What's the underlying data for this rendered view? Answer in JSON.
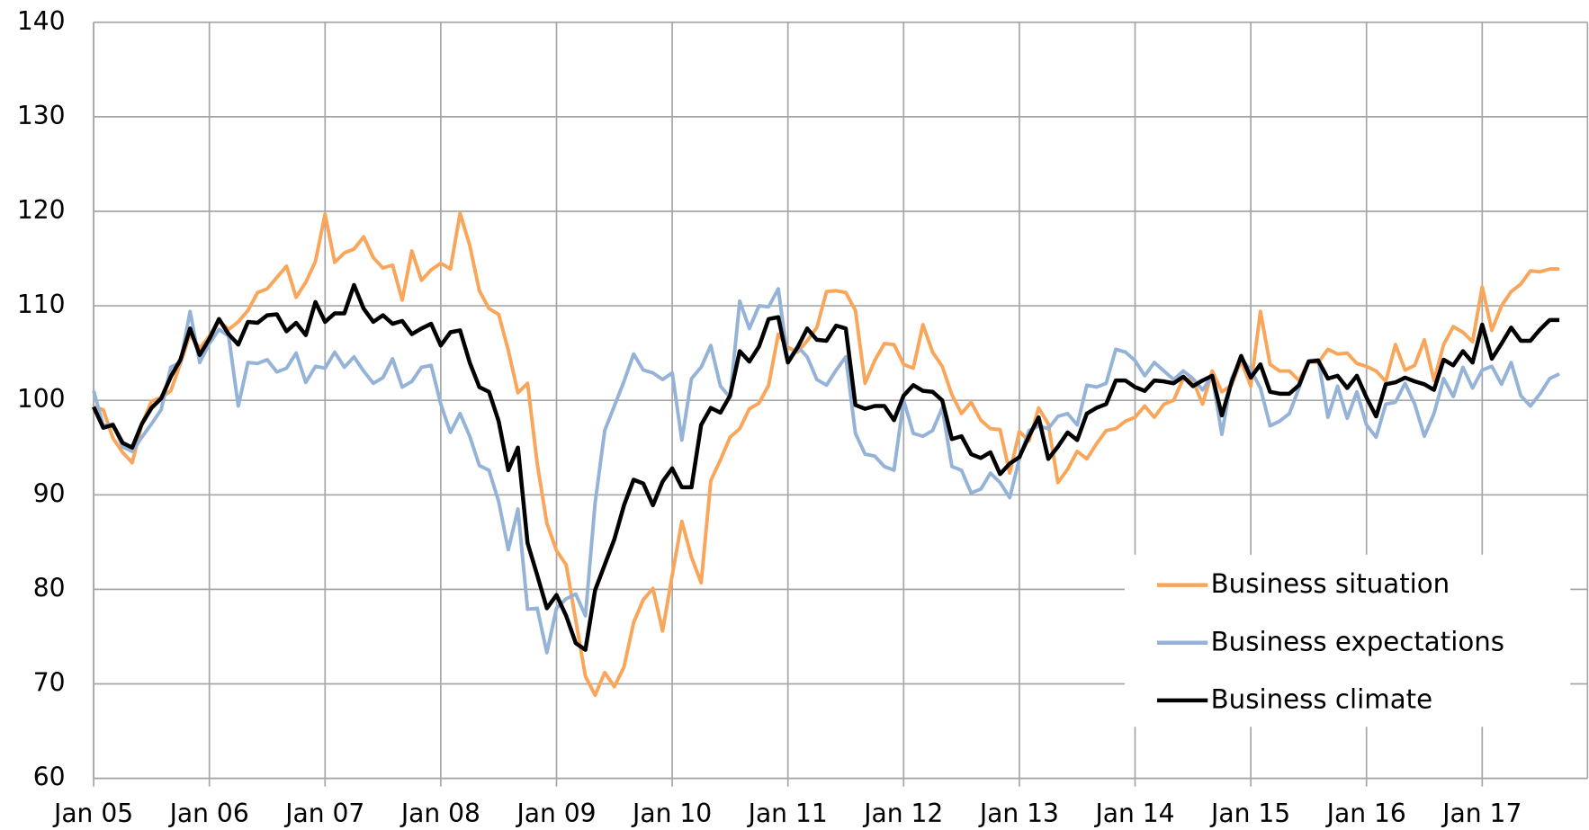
{
  "chart_data": {
    "type": "line",
    "categories": [
      "Jan 05",
      null,
      null,
      null,
      null,
      null,
      null,
      null,
      null,
      null,
      null,
      null,
      "Jan 06",
      null,
      null,
      null,
      null,
      null,
      null,
      null,
      null,
      null,
      null,
      null,
      "Jan 07",
      null,
      null,
      null,
      null,
      null,
      null,
      null,
      null,
      null,
      null,
      null,
      "Jan 08",
      null,
      null,
      null,
      null,
      null,
      null,
      null,
      null,
      null,
      null,
      null,
      "Jan 09",
      null,
      null,
      null,
      null,
      null,
      null,
      null,
      null,
      null,
      null,
      null,
      "Jan 10",
      null,
      null,
      null,
      null,
      null,
      null,
      null,
      null,
      null,
      null,
      null,
      "Jan 11",
      null,
      null,
      null,
      null,
      null,
      null,
      null,
      null,
      null,
      null,
      null,
      "Jan 12",
      null,
      null,
      null,
      null,
      null,
      null,
      null,
      null,
      null,
      null,
      null,
      "Jan 13",
      null,
      null,
      null,
      null,
      null,
      null,
      null,
      null,
      null,
      null,
      null,
      "Jan 14",
      null,
      null,
      null,
      null,
      null,
      null,
      null,
      null,
      null,
      null,
      null,
      "Jan 15",
      null,
      null,
      null,
      null,
      null,
      null,
      null,
      null,
      null,
      null,
      null,
      "Jan 16",
      null,
      null,
      null,
      null,
      null,
      null,
      null,
      null,
      null,
      null,
      null,
      "Jan 17",
      null,
      null,
      null,
      null,
      null,
      null,
      null,
      null
    ],
    "series": [
      {
        "name": "Business situation",
        "color": "#f9a65a",
        "values": [
          99.3,
          99.0,
          96.0,
          94.5,
          93.4,
          97.5,
          99.9,
          100.3,
          101.0,
          103.9,
          107.0,
          105.5,
          106.8,
          108.4,
          107.5,
          108.3,
          109.5,
          111.4,
          111.8,
          113.0,
          114.2,
          110.9,
          112.5,
          114.7,
          119.7,
          114.6,
          115.6,
          116.0,
          117.3,
          115.1,
          114.0,
          114.3,
          110.6,
          115.8,
          112.7,
          113.8,
          114.5,
          113.9,
          119.8,
          116.4,
          111.6,
          109.7,
          109.1,
          105.3,
          100.8,
          101.8,
          93.3,
          87.0,
          84.1,
          82.6,
          76.7,
          70.8,
          68.8,
          71.2,
          69.7,
          71.8,
          76.5,
          78.9,
          80.1,
          75.6,
          81.5,
          87.2,
          83.4,
          80.7,
          91.5,
          93.7,
          96.1,
          97.0,
          99.1,
          99.7,
          101.6,
          107.0,
          105.6,
          105.1,
          106.3,
          107.7,
          111.5,
          111.6,
          111.4,
          109.5,
          101.8,
          104.2,
          106.0,
          105.9,
          103.8,
          103.4,
          108.0,
          105.1,
          103.6,
          100.6,
          98.6,
          99.8,
          97.9,
          97.0,
          96.9,
          92.3,
          96.7,
          95.7,
          99.2,
          97.5,
          91.3,
          92.7,
          94.6,
          93.8,
          95.4,
          96.8,
          97.0,
          97.8,
          98.2,
          99.4,
          98.2,
          99.6,
          100.0,
          102.3,
          102.1,
          99.6,
          103.1,
          100.9,
          101.6,
          104.2,
          101.5,
          109.4,
          103.8,
          103.1,
          103.1,
          102.1,
          104.1,
          104.0,
          105.4,
          104.9,
          105.0,
          103.9,
          103.6,
          103.1,
          102.0,
          105.9,
          103.2,
          103.7,
          106.4,
          102.1,
          105.9,
          107.8,
          107.2,
          106.2,
          112.0,
          107.4,
          110.0,
          111.5,
          112.3,
          113.7,
          113.6,
          113.9,
          113.9
        ]
      },
      {
        "name": "Business expectations",
        "color": "#95b3d7",
        "values": [
          101.0,
          97.3,
          97.5,
          95.1,
          94.6,
          96.1,
          97.5,
          99.0,
          103.5,
          104.0,
          109.4,
          104.0,
          106.0,
          107.5,
          106.8,
          99.4,
          104.0,
          103.9,
          104.3,
          103.0,
          103.4,
          105.0,
          101.9,
          103.6,
          103.4,
          105.1,
          103.5,
          104.6,
          103.1,
          101.8,
          102.4,
          104.4,
          101.4,
          102.0,
          103.5,
          103.7,
          99.6,
          96.6,
          98.6,
          96.2,
          93.1,
          92.6,
          89.3,
          84.2,
          88.5,
          77.9,
          78.0,
          73.3,
          78.0,
          79.0,
          79.5,
          77.2,
          89.1,
          96.8,
          99.4,
          102.0,
          104.9,
          103.2,
          102.9,
          102.2,
          102.9,
          95.8,
          102.3,
          103.5,
          105.8,
          101.5,
          100.3,
          110.5,
          107.6,
          110.0,
          109.9,
          111.8,
          104.2,
          105.7,
          104.6,
          102.2,
          101.6,
          103.2,
          104.6,
          96.5,
          94.3,
          94.1,
          93.0,
          92.6,
          100.0,
          96.5,
          96.2,
          96.8,
          99.2,
          93.0,
          92.6,
          90.2,
          90.6,
          92.3,
          91.3,
          89.7,
          93.8,
          96.8,
          97.3,
          97.0,
          98.3,
          98.6,
          97.4,
          101.6,
          101.4,
          101.8,
          105.4,
          105.1,
          104.2,
          102.6,
          104.0,
          103.1,
          102.2,
          103.1,
          102.3,
          101.1,
          102.6,
          96.4,
          102.3,
          104.4,
          103.2,
          101.3,
          97.3,
          97.8,
          98.6,
          101.3,
          104.2,
          104.3,
          98.2,
          101.5,
          98.1,
          100.9,
          97.4,
          96.1,
          99.6,
          99.8,
          101.8,
          99.6,
          96.2,
          98.6,
          102.3,
          100.4,
          103.5,
          101.3,
          103.2,
          103.6,
          101.7,
          104.0,
          100.5,
          99.4,
          100.7,
          102.3,
          102.8
        ]
      },
      {
        "name": "Business climate",
        "color": "#000000",
        "values": [
          99.3,
          97.1,
          97.4,
          95.5,
          95.0,
          97.5,
          99.2,
          100.2,
          102.5,
          104.3,
          107.6,
          104.8,
          106.5,
          108.6,
          107.0,
          105.9,
          108.3,
          108.2,
          109.0,
          109.1,
          107.3,
          108.2,
          106.9,
          110.4,
          108.3,
          109.2,
          109.2,
          112.2,
          109.7,
          108.3,
          109.0,
          108.1,
          108.4,
          107.0,
          107.6,
          108.1,
          105.8,
          107.2,
          107.4,
          104.0,
          101.4,
          100.9,
          97.8,
          92.6,
          95.0,
          84.9,
          81.5,
          78.0,
          79.4,
          77.2,
          74.3,
          73.6,
          79.9,
          82.6,
          85.3,
          88.9,
          91.6,
          91.2,
          88.9,
          91.4,
          92.8,
          90.8,
          90.8,
          97.4,
          99.2,
          98.7,
          100.5,
          105.2,
          104.1,
          105.7,
          108.6,
          108.8,
          104.0,
          105.6,
          107.6,
          106.4,
          106.3,
          107.9,
          107.6,
          99.5,
          99.1,
          99.4,
          99.4,
          97.9,
          100.5,
          101.6,
          101.0,
          100.9,
          100.0,
          95.9,
          96.2,
          94.3,
          93.9,
          94.5,
          92.2,
          93.3,
          94.0,
          96.2,
          98.2,
          93.8,
          95.1,
          96.6,
          95.8,
          98.6,
          99.2,
          99.6,
          102.1,
          102.1,
          101.4,
          101.0,
          102.1,
          102.0,
          101.8,
          102.5,
          101.5,
          102.1,
          102.6,
          98.4,
          101.9,
          104.7,
          102.4,
          103.8,
          100.9,
          100.7,
          100.7,
          101.6,
          104.1,
          104.2,
          102.3,
          102.6,
          101.3,
          102.6,
          100.3,
          98.3,
          101.7,
          101.9,
          102.4,
          102.0,
          101.7,
          101.1,
          104.3,
          103.7,
          105.2,
          104.0,
          108.0,
          104.4,
          106.0,
          107.7,
          106.3,
          106.3,
          107.5,
          108.5,
          108.5
        ]
      }
    ],
    "ylim": [
      60,
      140
    ],
    "yticks": [
      60,
      70,
      80,
      90,
      100,
      110,
      120,
      130,
      140
    ],
    "grid": true,
    "legend": "lower right"
  }
}
